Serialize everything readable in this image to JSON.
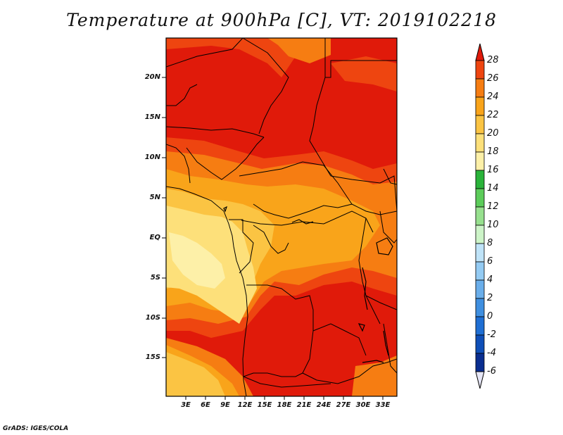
{
  "title": "Temperature at 900hPa [C], VT: 2019102218",
  "credit": "GrADS: IGES/COLA",
  "lat_labels": [
    "20N",
    "15N",
    "10N",
    "5N",
    "EQ",
    "5S",
    "10S",
    "15S"
  ],
  "lon_labels": [
    "3E",
    "6E",
    "9E",
    "12E",
    "15E",
    "18E",
    "21E",
    "24E",
    "27E",
    "30E",
    "33E"
  ],
  "colorbar": {
    "labels": [
      "28",
      "26",
      "24",
      "22",
      "20",
      "18",
      "16",
      "14",
      "12",
      "10",
      "8",
      "6",
      "4",
      "2",
      "0",
      "-2",
      "-4",
      "-6"
    ],
    "colors": [
      "#e01a0a",
      "#ee4510",
      "#f67d12",
      "#f9a41a",
      "#fbc443",
      "#fde07a",
      "#fdf0a8",
      "#2ab33a",
      "#5ccc5a",
      "#97e08e",
      "#cdf4c8",
      "#bfe3f8",
      "#94cbf3",
      "#6aaeea",
      "#3f8fe0",
      "#1f6fd4",
      "#0f4fb8",
      "#0a2e90",
      "#061a6a"
    ],
    "top_arrow_color": "#e01a0a",
    "bottom_arrow_color": "#e6e6f6"
  },
  "field_colors": {
    "gt28": "#e01a0a",
    "26_28": "#ee4510",
    "24_26": "#f67d12",
    "22_24": "#f9a41a",
    "20_22": "#fbc443",
    "18_20": "#fde07a",
    "16_18": "#fdf0a8"
  }
}
